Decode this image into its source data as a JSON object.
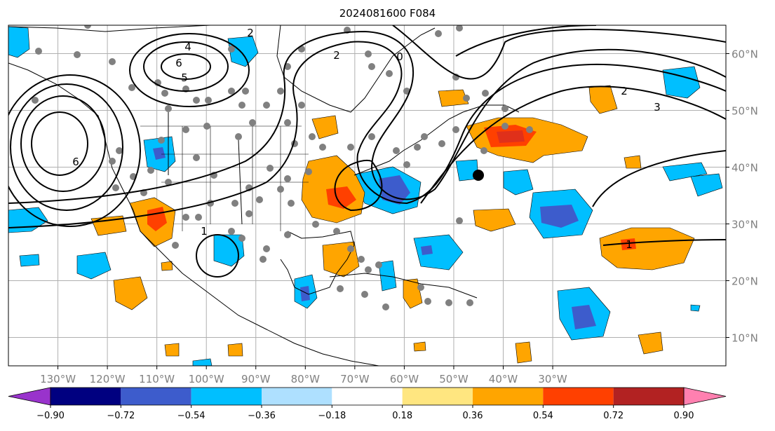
{
  "title": "2024081600 F084",
  "map": {
    "lon_range": [
      -140,
      5
    ],
    "lat_range": [
      5,
      65
    ],
    "lat_labels": [
      "10°N",
      "20°N",
      "30°N",
      "40°N",
      "50°N",
      "60°N"
    ],
    "lon_labels": [
      "130°W",
      "120°W",
      "110°W",
      "100°W",
      "90°W",
      "80°W",
      "70°W",
      "60°W",
      "50°W",
      "40°W",
      "30°W"
    ],
    "contour_labels": [
      "2",
      "2",
      "4",
      "5",
      "6",
      "6",
      "0",
      "2",
      "3",
      "1",
      "1"
    ]
  },
  "colorbar": {
    "labels": [
      "−0.90",
      "−0.72",
      "−0.54",
      "−0.36",
      "−0.18",
      "0.18",
      "0.36",
      "0.54",
      "0.72",
      "0.90"
    ],
    "colors": [
      "#9933cc",
      "#000080",
      "#3d5ccc",
      "#00bfff",
      "#aee0ff",
      "#ffffff",
      "#ffe680",
      "#ffa500",
      "#ff4000",
      "#b22222",
      "#ff80b0"
    ]
  },
  "colors": {
    "orange": "#ffa500",
    "red": "#ff4000",
    "darkred": "#e0301a",
    "light_blue": "#00bfff",
    "mid_blue": "#3d5ccc",
    "grid": "#b0b0b0",
    "dot": "#808080"
  }
}
